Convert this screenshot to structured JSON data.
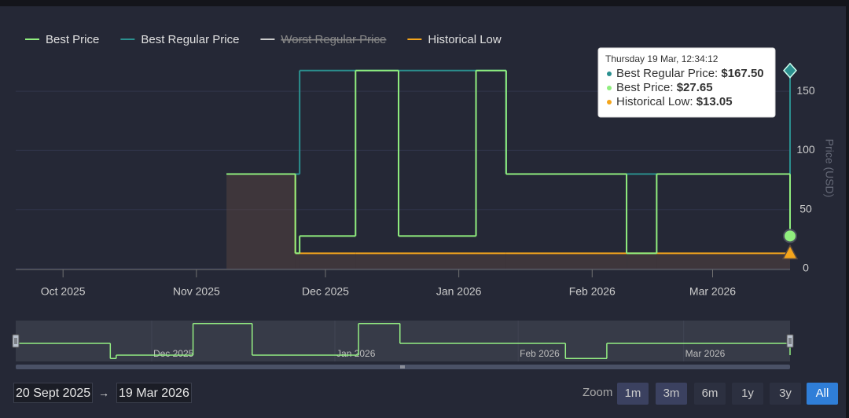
{
  "chart_data": {
    "type": "step",
    "x": [
      "2025-11-08",
      "2025-11-24",
      "2025-11-25",
      "2025-12-08",
      "2025-12-18",
      "2026-01-05",
      "2026-01-12",
      "2026-02-09",
      "2026-02-16",
      "2026-03-19"
    ],
    "series": [
      {
        "name": "Best Price",
        "color": "#90ee7e",
        "marker": "circle",
        "visible": true,
        "values": [
          79.99,
          13.05,
          27.65,
          167.5,
          27.65,
          167.5,
          79.99,
          13.05,
          79.99,
          27.65
        ]
      },
      {
        "name": "Best Regular Price",
        "color": "#2b908f",
        "marker": "diamond",
        "visible": true,
        "values": [
          79.99,
          79.99,
          167.5,
          167.5,
          167.5,
          167.5,
          79.99,
          79.99,
          79.99,
          167.5
        ]
      },
      {
        "name": "Worst Regular Price",
        "color": "#cccccc",
        "visible": false,
        "values": [
          null,
          null,
          null,
          null,
          null,
          null,
          null,
          null,
          null,
          null
        ]
      },
      {
        "name": "Historical Low",
        "color": "#f4a51c",
        "marker": "triangle",
        "visible": true,
        "area": true,
        "values": [
          79.99,
          13.05,
          13.05,
          13.05,
          13.05,
          13.05,
          13.05,
          13.05,
          13.05,
          13.05
        ]
      }
    ],
    "xlim": [
      "2025-09-20",
      "2026-03-19"
    ],
    "xticks": [
      {
        "value": "2025-10-01",
        "label": "Oct 2025"
      },
      {
        "value": "2025-11-01",
        "label": "Nov 2025"
      },
      {
        "value": "2025-12-01",
        "label": "Dec 2025"
      },
      {
        "value": "2026-01-01",
        "label": "Jan 2026"
      },
      {
        "value": "2026-02-01",
        "label": "Feb 2026"
      },
      {
        "value": "2026-03-01",
        "label": "Mar 2026"
      }
    ],
    "ylim": [
      0,
      170
    ],
    "yticks": [
      0,
      50,
      100,
      150
    ],
    "y_label": "Price (USD)",
    "grid": true,
    "legend": "top-left",
    "tooltip": {
      "header": "Thursday 19 Mar, 12:34:12",
      "items": [
        {
          "label": "Best Regular Price:",
          "value": "$167.50",
          "color": "#2b908f"
        },
        {
          "label": "Best Price:",
          "value": "$27.65",
          "color": "#90ee7e"
        },
        {
          "label": "Historical Low:",
          "value": "$13.05",
          "color": "#f4a51c"
        }
      ]
    },
    "navigator": {
      "xlim": [
        "2025-11-08",
        "2026-03-19"
      ],
      "xticks": [
        {
          "value": "2025-12-01",
          "label": "Dec 2025"
        },
        {
          "value": "2026-01-01",
          "label": "Jan 2026"
        },
        {
          "value": "2026-02-01",
          "label": "Feb 2026"
        },
        {
          "value": "2026-03-01",
          "label": "Mar 2026"
        }
      ]
    },
    "range_selector": {
      "from": "20 Sept 2025",
      "arrow": "→",
      "to": "19 Mar 2026",
      "zoom_label": "Zoom",
      "buttons": [
        "1m",
        "3m",
        "6m",
        "1y",
        "3y",
        "All"
      ],
      "selected": 5
    }
  }
}
